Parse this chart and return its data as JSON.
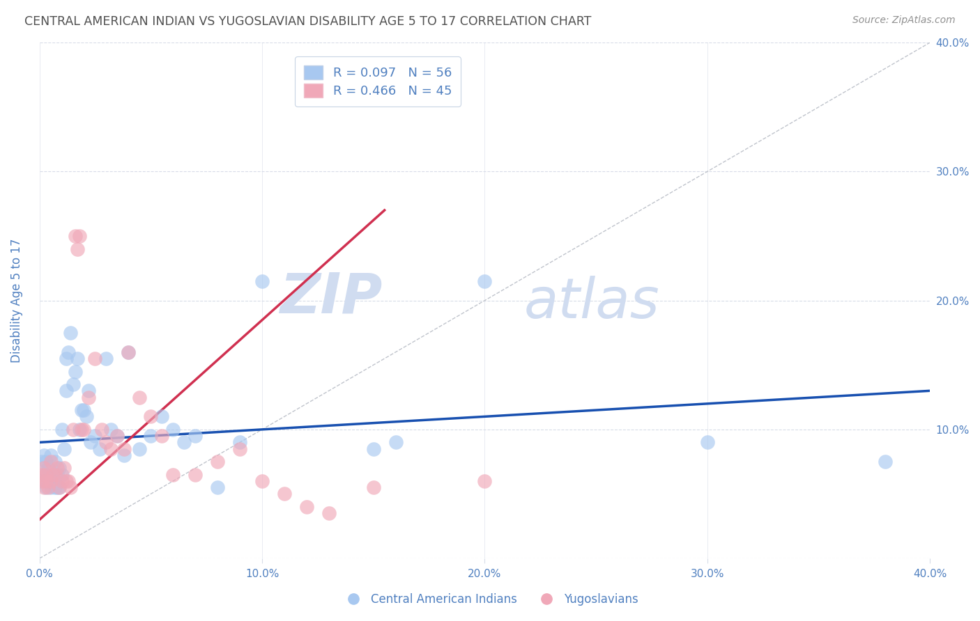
{
  "title": "CENTRAL AMERICAN INDIAN VS YUGOSLAVIAN DISABILITY AGE 5 TO 17 CORRELATION CHART",
  "source": "Source: ZipAtlas.com",
  "ylabel": "Disability Age 5 to 17",
  "xlim": [
    0.0,
    0.4
  ],
  "ylim": [
    0.0,
    0.4
  ],
  "xticks": [
    0.0,
    0.1,
    0.2,
    0.3,
    0.4
  ],
  "yticks": [
    0.0,
    0.1,
    0.2,
    0.3,
    0.4
  ],
  "xticklabels": [
    "0.0%",
    "10.0%",
    "20.0%",
    "30.0%",
    "40.0%"
  ],
  "right_yticklabels": [
    "",
    "10.0%",
    "20.0%",
    "30.0%",
    "40.0%"
  ],
  "legend_r1": "R = 0.097",
  "legend_n1": "N = 56",
  "legend_r2": "R = 0.466",
  "legend_n2": "N = 45",
  "color_blue": "#A8C8F0",
  "color_pink": "#F0A8B8",
  "color_line_blue": "#1850B0",
  "color_line_pink": "#D03050",
  "color_title": "#505050",
  "color_source": "#909090",
  "color_axis_labels": "#5080C0",
  "color_watermark": "#D0DCF0",
  "watermark_zip": "ZIP",
  "watermark_atlas": "atlas",
  "blue_scatter_x": [
    0.001,
    0.001,
    0.002,
    0.002,
    0.003,
    0.003,
    0.003,
    0.004,
    0.004,
    0.005,
    0.005,
    0.005,
    0.006,
    0.007,
    0.007,
    0.008,
    0.008,
    0.009,
    0.009,
    0.01,
    0.01,
    0.011,
    0.012,
    0.012,
    0.013,
    0.014,
    0.015,
    0.016,
    0.017,
    0.018,
    0.019,
    0.02,
    0.021,
    0.022,
    0.023,
    0.025,
    0.027,
    0.03,
    0.032,
    0.035,
    0.038,
    0.04,
    0.045,
    0.05,
    0.055,
    0.06,
    0.065,
    0.07,
    0.08,
    0.09,
    0.1,
    0.15,
    0.16,
    0.2,
    0.3,
    0.38
  ],
  "blue_scatter_y": [
    0.075,
    0.06,
    0.065,
    0.08,
    0.055,
    0.075,
    0.065,
    0.06,
    0.07,
    0.08,
    0.06,
    0.055,
    0.065,
    0.075,
    0.055,
    0.065,
    0.055,
    0.07,
    0.055,
    0.1,
    0.065,
    0.085,
    0.155,
    0.13,
    0.16,
    0.175,
    0.135,
    0.145,
    0.155,
    0.1,
    0.115,
    0.115,
    0.11,
    0.13,
    0.09,
    0.095,
    0.085,
    0.155,
    0.1,
    0.095,
    0.08,
    0.16,
    0.085,
    0.095,
    0.11,
    0.1,
    0.09,
    0.095,
    0.055,
    0.09,
    0.215,
    0.085,
    0.09,
    0.215,
    0.09,
    0.075
  ],
  "pink_scatter_x": [
    0.001,
    0.001,
    0.002,
    0.002,
    0.003,
    0.003,
    0.004,
    0.005,
    0.005,
    0.006,
    0.007,
    0.008,
    0.009,
    0.01,
    0.011,
    0.012,
    0.013,
    0.014,
    0.015,
    0.016,
    0.017,
    0.018,
    0.019,
    0.02,
    0.022,
    0.025,
    0.028,
    0.03,
    0.032,
    0.035,
    0.038,
    0.04,
    0.045,
    0.05,
    0.055,
    0.06,
    0.07,
    0.08,
    0.09,
    0.1,
    0.11,
    0.12,
    0.13,
    0.15,
    0.2
  ],
  "pink_scatter_y": [
    0.06,
    0.065,
    0.07,
    0.055,
    0.065,
    0.06,
    0.055,
    0.075,
    0.06,
    0.065,
    0.065,
    0.07,
    0.055,
    0.06,
    0.07,
    0.06,
    0.06,
    0.055,
    0.1,
    0.25,
    0.24,
    0.25,
    0.1,
    0.1,
    0.125,
    0.155,
    0.1,
    0.09,
    0.085,
    0.095,
    0.085,
    0.16,
    0.125,
    0.11,
    0.095,
    0.065,
    0.065,
    0.075,
    0.085,
    0.06,
    0.05,
    0.04,
    0.035,
    0.055,
    0.06
  ],
  "blue_line_x0": 0.0,
  "blue_line_y0": 0.09,
  "blue_line_x1": 0.4,
  "blue_line_y1": 0.13,
  "pink_line_x0": 0.0,
  "pink_line_y0": 0.03,
  "pink_line_x1": 0.155,
  "pink_line_y1": 0.27,
  "diagonal_color": "#C0C4CC",
  "diagonal_style": "--",
  "gridline_color": "#D8DCE8",
  "gridline_style": "--"
}
